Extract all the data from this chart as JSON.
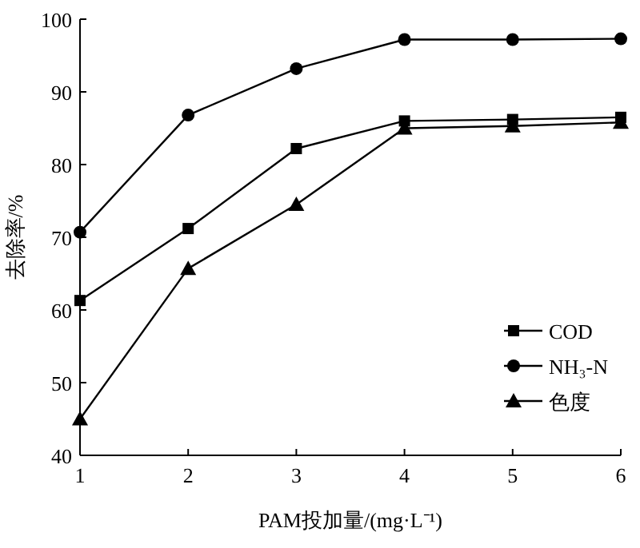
{
  "chart_data": {
    "type": "line",
    "xlabel": "PAM投加量/(mg·L⁻¹)",
    "ylabel": "去除率/%",
    "x": [
      1,
      2,
      3,
      4,
      5,
      6
    ],
    "xlim": [
      1,
      6
    ],
    "xticks": [
      1,
      2,
      3,
      4,
      5,
      6
    ],
    "ylim": [
      40,
      100
    ],
    "yticks": [
      40,
      50,
      60,
      70,
      80,
      90,
      100
    ],
    "legend": "bottom right",
    "grid": false,
    "line_style": "solid",
    "series": [
      {
        "name": "COD",
        "color": "#000000",
        "marker": "square",
        "values": [
          61.3,
          71.2,
          82.2,
          86,
          86.2,
          86.5
        ]
      },
      {
        "name": "NH₃-N",
        "color": "#000000",
        "marker": "circle",
        "values": [
          70.7,
          86.8,
          93.2,
          97.2,
          97.2,
          97.3
        ]
      },
      {
        "name": "色度",
        "color": "#000000",
        "marker": "triangle",
        "values": [
          45,
          65.7,
          74.5,
          85,
          85.3,
          85.8
        ]
      }
    ]
  }
}
